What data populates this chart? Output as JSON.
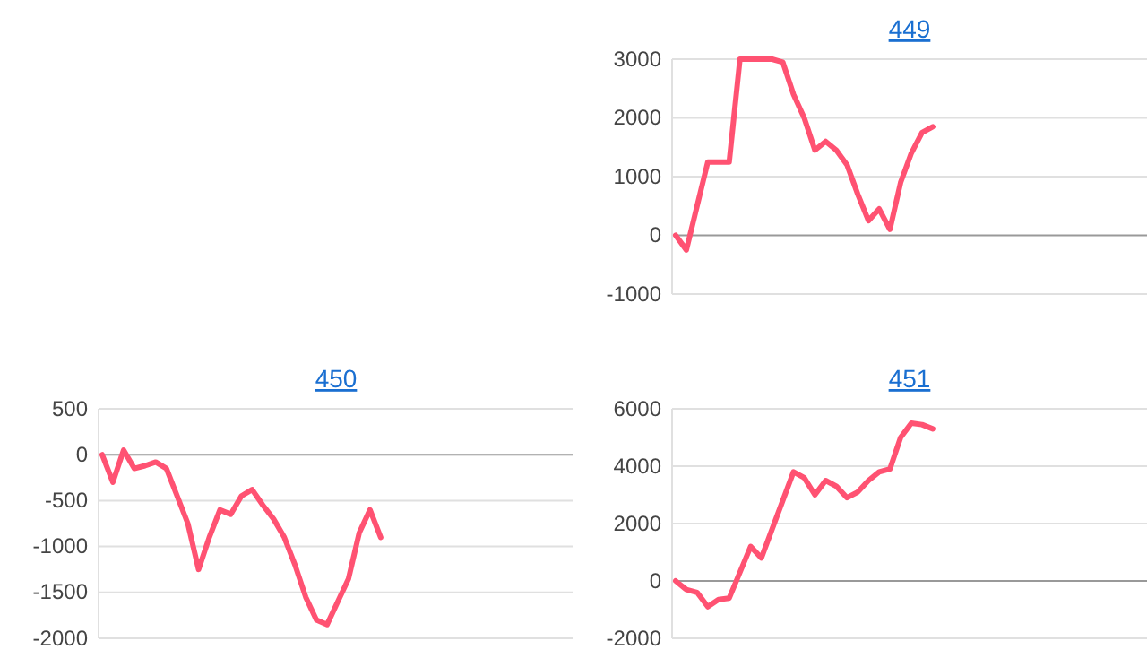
{
  "chart_data": [
    {
      "type": "line",
      "title": "449",
      "tick_labels": "y",
      "grid": "y",
      "color": "#ff5272",
      "ylim": [
        -1000,
        3000
      ],
      "yticks": [
        -1000,
        0,
        1000,
        2000,
        3000
      ],
      "categories": [
        null,
        null,
        null,
        null,
        null,
        null,
        null,
        null,
        null,
        null,
        null,
        null,
        null,
        null,
        null,
        null,
        null,
        null,
        null,
        null,
        null,
        null,
        null,
        null,
        null,
        null,
        null,
        null,
        null,
        null,
        null,
        null,
        null,
        null,
        null,
        null,
        null,
        null,
        null,
        null,
        null,
        null,
        null,
        null,
        null
      ],
      "values": [
        0,
        -250,
        500,
        1250,
        1250,
        1250,
        3000,
        3000,
        3000,
        3000,
        2950,
        2400,
        2000,
        1450,
        1600,
        1450,
        1200,
        700,
        250,
        450,
        100,
        900,
        1400,
        1750,
        1850,
        null,
        null,
        null,
        null,
        null,
        null,
        null,
        null,
        null,
        null,
        null,
        null,
        null,
        null,
        null,
        null,
        null,
        null,
        null,
        null
      ]
    },
    {
      "type": "line",
      "title": "450",
      "tick_labels": "y",
      "grid": "y",
      "color": "#ff5272",
      "ylim": [
        -2000,
        500
      ],
      "yticks": [
        -2000,
        -1500,
        -1000,
        -500,
        0,
        500
      ],
      "categories": [
        null,
        null,
        null,
        null,
        null,
        null,
        null,
        null,
        null,
        null,
        null,
        null,
        null,
        null,
        null,
        null,
        null,
        null,
        null,
        null,
        null,
        null,
        null,
        null,
        null,
        null,
        null,
        null,
        null,
        null,
        null,
        null,
        null,
        null,
        null,
        null,
        null,
        null,
        null,
        null,
        null,
        null,
        null,
        null,
        null
      ],
      "values": [
        0,
        -300,
        50,
        -150,
        -120,
        -80,
        -150,
        -450,
        -750,
        -1250,
        -900,
        -600,
        -650,
        -450,
        -380,
        -550,
        -700,
        -900,
        -1200,
        -1550,
        -1800,
        -1850,
        -1600,
        -1350,
        -850,
        -600,
        -900,
        null,
        null,
        null,
        null,
        null,
        null,
        null,
        null,
        null,
        null,
        null,
        null,
        null,
        null,
        null,
        null,
        null,
        null
      ]
    },
    {
      "type": "line",
      "title": "451",
      "tick_labels": "y",
      "grid": "y",
      "color": "#ff5272",
      "ylim": [
        -2000,
        6000
      ],
      "yticks": [
        -2000,
        0,
        2000,
        4000,
        6000
      ],
      "categories": [
        null,
        null,
        null,
        null,
        null,
        null,
        null,
        null,
        null,
        null,
        null,
        null,
        null,
        null,
        null,
        null,
        null,
        null,
        null,
        null,
        null,
        null,
        null,
        null,
        null,
        null,
        null,
        null,
        null,
        null,
        null,
        null,
        null,
        null,
        null,
        null,
        null,
        null,
        null,
        null,
        null,
        null,
        null,
        null,
        null
      ],
      "values": [
        0,
        -300,
        -400,
        -900,
        -650,
        -600,
        300,
        1200,
        800,
        1800,
        2800,
        3800,
        3600,
        3000,
        3500,
        3300,
        2900,
        3100,
        3500,
        3800,
        3900,
        5000,
        5500,
        5450,
        5300,
        null,
        null,
        null,
        null,
        null,
        null,
        null,
        null,
        null,
        null,
        null,
        null,
        null,
        null,
        null,
        null,
        null,
        null,
        null,
        null
      ]
    }
  ]
}
